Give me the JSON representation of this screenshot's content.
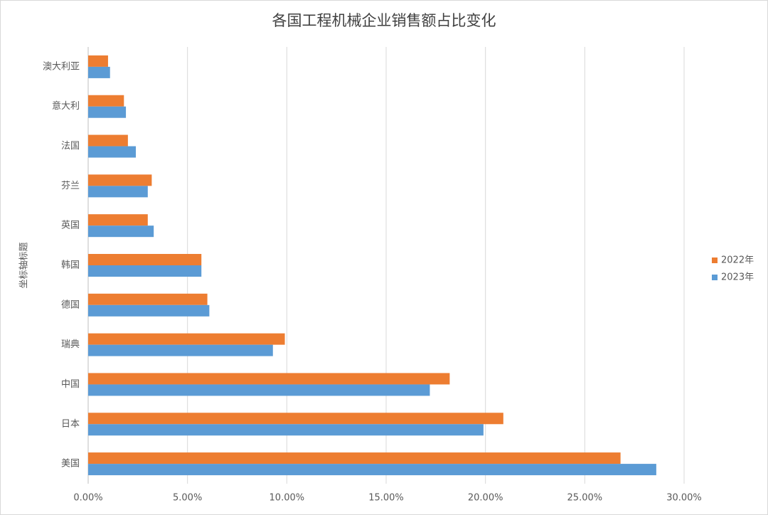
{
  "chart_data": {
    "type": "hbar",
    "title": "各国工程机械企业销售额占比变化",
    "y_label": "坐标轴标题",
    "categories": [
      "美国",
      "日本",
      "中国",
      "瑞典",
      "德国",
      "韩国",
      "英国",
      "芬兰",
      "法国",
      "意大利",
      "澳大利亚"
    ],
    "series": [
      {
        "name": "2022年",
        "color": "#ed7d31",
        "values": [
          26.8,
          20.9,
          18.2,
          9.9,
          6.0,
          5.7,
          3.0,
          3.2,
          2.0,
          1.8,
          1.0
        ]
      },
      {
        "name": "2023年",
        "color": "#5b9bd5",
        "values": [
          28.6,
          19.9,
          17.2,
          9.3,
          6.1,
          5.7,
          3.3,
          3.0,
          2.4,
          1.9,
          1.1
        ]
      }
    ],
    "xlim": [
      0,
      30
    ],
    "xticks": [
      {
        "value": 0,
        "label": "0.00%"
      },
      {
        "value": 5,
        "label": "5.00%"
      },
      {
        "value": 10,
        "label": "10.00%"
      },
      {
        "value": 15,
        "label": "15.00%"
      },
      {
        "value": 20,
        "label": "20.00%"
      },
      {
        "value": 25,
        "label": "25.00%"
      },
      {
        "value": 30,
        "label": "30.00%"
      }
    ],
    "grid": true,
    "legend": "right"
  }
}
